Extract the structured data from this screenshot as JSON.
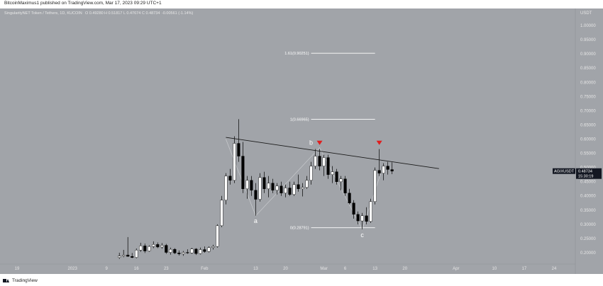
{
  "header": {
    "author": "BitcoinMaximus1",
    "published_text": "published on TradingView.com, Mar 17, 2023 09:29 UTC+1"
  },
  "ohlc_header": {
    "symbol": "SingularityNET Token / Tethers, 1D, KUCOIN",
    "open": "O 0.49280",
    "high": "H 0.51817",
    "low": "L 0.47674",
    "close": "C 0.48734",
    "change": "-0.00561 (-1.14%)"
  },
  "colors": {
    "background": "#a1a4a9",
    "up_candle": "#ffffff",
    "down_candle": "#000000",
    "trendline": "#1a1a1a",
    "wave_line": "#c9cbce",
    "marker": "#e01e1e",
    "price_tag": "#131722"
  },
  "chart_data": {
    "type": "candlestick",
    "currency_label": "USDT",
    "symbol_label": "AGIXUSDT",
    "last_price": "0.48734",
    "countdown": "15:30:19",
    "y_ticks": [
      "0.20000",
      "0.25000",
      "0.30000",
      "0.35000",
      "0.40000",
      "0.45000",
      "0.50000",
      "0.55000",
      "0.60000",
      "0.65000",
      "0.70000",
      "0.75000",
      "0.80000",
      "0.85000",
      "0.90000",
      "0.95000",
      "1.00000"
    ],
    "y_tick_values": [
      0.2,
      0.25,
      0.3,
      0.35,
      0.4,
      0.45,
      0.5,
      0.55,
      0.6,
      0.65,
      0.7,
      0.75,
      0.8,
      0.85,
      0.9,
      0.95,
      1.0
    ],
    "ylim": [
      0.16,
      1.06
    ],
    "x_ticks": [
      {
        "label": "19",
        "date": "2022-12-19"
      },
      {
        "label": "2023",
        "date": "2023-01-01"
      },
      {
        "label": "9",
        "date": "2023-01-09"
      },
      {
        "label": "16",
        "date": "2023-01-16"
      },
      {
        "label": "23",
        "date": "2023-01-23"
      },
      {
        "label": "Feb",
        "date": "2023-02-01"
      },
      {
        "label": "13",
        "date": "2023-02-13"
      },
      {
        "label": "20",
        "date": "2023-02-20"
      },
      {
        "label": "Mar",
        "date": "2023-03-01"
      },
      {
        "label": "6",
        "date": "2023-03-06"
      },
      {
        "label": "13",
        "date": "2023-03-13"
      },
      {
        "label": "20",
        "date": "2023-03-20"
      },
      {
        "label": "Apr",
        "date": "2023-04-01"
      },
      {
        "label": "10",
        "date": "2023-04-10"
      },
      {
        "label": "17",
        "date": "2023-04-17"
      },
      {
        "label": "24",
        "date": "2023-04-24"
      }
    ],
    "xlim": [
      "2022-12-15",
      "2023-04-29"
    ],
    "fib_levels": [
      {
        "label": "1.61(0.90251)",
        "value": 0.90251
      },
      {
        "label": "1(0.66965)",
        "value": 0.66965
      },
      {
        "label": "0(0.28791)",
        "value": 0.28791
      }
    ],
    "fib_range": [
      "2023-02-26",
      "2023-03-13"
    ],
    "trendline": [
      {
        "date": "2023-02-06",
        "value": 0.606
      },
      {
        "date": "2023-03-28",
        "value": 0.496
      }
    ],
    "wave_path": [
      {
        "date": "2023-02-06",
        "value": 0.6
      },
      {
        "date": "2023-02-13",
        "value": 0.33
      },
      {
        "date": "2023-02-28",
        "value": 0.57
      },
      {
        "date": "2023-03-10",
        "value": 0.282
      },
      {
        "date": "2023-03-15",
        "value": 0.51
      }
    ],
    "wave_labels": [
      {
        "label": "a",
        "date": "2023-02-13",
        "value": 0.305
      },
      {
        "label": "b",
        "date": "2023-02-26",
        "value": 0.58
      },
      {
        "label": "c",
        "date": "2023-03-10",
        "value": 0.255
      }
    ],
    "markers": [
      {
        "date": "2023-02-28",
        "value": 0.582
      },
      {
        "date": "2023-03-14",
        "value": 0.582
      }
    ],
    "candles": [
      {
        "date": "2023-01-12",
        "o": 0.183,
        "h": 0.2,
        "l": 0.178,
        "c": 0.188
      },
      {
        "date": "2023-01-13",
        "o": 0.188,
        "h": 0.21,
        "l": 0.184,
        "c": 0.192
      },
      {
        "date": "2023-01-14",
        "o": 0.192,
        "h": 0.255,
        "l": 0.186,
        "c": 0.187
      },
      {
        "date": "2023-01-15",
        "o": 0.187,
        "h": 0.199,
        "l": 0.181,
        "c": 0.183
      },
      {
        "date": "2023-01-16",
        "o": 0.183,
        "h": 0.215,
        "l": 0.18,
        "c": 0.209
      },
      {
        "date": "2023-01-17",
        "o": 0.209,
        "h": 0.235,
        "l": 0.203,
        "c": 0.224
      },
      {
        "date": "2023-01-18",
        "o": 0.224,
        "h": 0.232,
        "l": 0.199,
        "c": 0.206
      },
      {
        "date": "2023-01-19",
        "o": 0.206,
        "h": 0.226,
        "l": 0.203,
        "c": 0.222
      },
      {
        "date": "2023-01-20",
        "o": 0.222,
        "h": 0.24,
        "l": 0.216,
        "c": 0.229
      },
      {
        "date": "2023-01-21",
        "o": 0.229,
        "h": 0.236,
        "l": 0.216,
        "c": 0.22
      },
      {
        "date": "2023-01-22",
        "o": 0.22,
        "h": 0.234,
        "l": 0.214,
        "c": 0.226
      },
      {
        "date": "2023-01-23",
        "o": 0.226,
        "h": 0.231,
        "l": 0.196,
        "c": 0.201
      },
      {
        "date": "2023-01-24",
        "o": 0.201,
        "h": 0.218,
        "l": 0.193,
        "c": 0.212
      },
      {
        "date": "2023-01-25",
        "o": 0.212,
        "h": 0.216,
        "l": 0.195,
        "c": 0.199
      },
      {
        "date": "2023-01-26",
        "o": 0.199,
        "h": 0.208,
        "l": 0.19,
        "c": 0.196
      },
      {
        "date": "2023-01-27",
        "o": 0.196,
        "h": 0.206,
        "l": 0.189,
        "c": 0.201
      },
      {
        "date": "2023-01-28",
        "o": 0.201,
        "h": 0.212,
        "l": 0.196,
        "c": 0.199
      },
      {
        "date": "2023-01-29",
        "o": 0.199,
        "h": 0.217,
        "l": 0.196,
        "c": 0.213
      },
      {
        "date": "2023-01-30",
        "o": 0.213,
        "h": 0.216,
        "l": 0.192,
        "c": 0.197
      },
      {
        "date": "2023-01-31",
        "o": 0.197,
        "h": 0.218,
        "l": 0.194,
        "c": 0.211
      },
      {
        "date": "2023-02-01",
        "o": 0.211,
        "h": 0.222,
        "l": 0.2,
        "c": 0.204
      },
      {
        "date": "2023-02-02",
        "o": 0.204,
        "h": 0.222,
        "l": 0.201,
        "c": 0.218
      },
      {
        "date": "2023-02-03",
        "o": 0.218,
        "h": 0.228,
        "l": 0.211,
        "c": 0.222
      },
      {
        "date": "2023-02-04",
        "o": 0.222,
        "h": 0.3,
        "l": 0.218,
        "c": 0.295
      },
      {
        "date": "2023-02-05",
        "o": 0.295,
        "h": 0.4,
        "l": 0.29,
        "c": 0.385
      },
      {
        "date": "2023-02-06",
        "o": 0.385,
        "h": 0.48,
        "l": 0.37,
        "c": 0.47
      },
      {
        "date": "2023-02-07",
        "o": 0.47,
        "h": 0.495,
        "l": 0.44,
        "c": 0.455
      },
      {
        "date": "2023-02-08",
        "o": 0.455,
        "h": 0.61,
        "l": 0.445,
        "c": 0.585
      },
      {
        "date": "2023-02-09",
        "o": 0.585,
        "h": 0.67,
        "l": 0.52,
        "c": 0.54
      },
      {
        "date": "2023-02-10",
        "o": 0.54,
        "h": 0.59,
        "l": 0.41,
        "c": 0.425
      },
      {
        "date": "2023-02-11",
        "o": 0.425,
        "h": 0.47,
        "l": 0.39,
        "c": 0.455
      },
      {
        "date": "2023-02-12",
        "o": 0.455,
        "h": 0.47,
        "l": 0.4,
        "c": 0.42
      },
      {
        "date": "2023-02-13",
        "o": 0.42,
        "h": 0.445,
        "l": 0.33,
        "c": 0.388
      },
      {
        "date": "2023-02-14",
        "o": 0.388,
        "h": 0.48,
        "l": 0.38,
        "c": 0.465
      },
      {
        "date": "2023-02-15",
        "o": 0.465,
        "h": 0.485,
        "l": 0.41,
        "c": 0.425
      },
      {
        "date": "2023-02-16",
        "o": 0.425,
        "h": 0.47,
        "l": 0.395,
        "c": 0.445
      },
      {
        "date": "2023-02-17",
        "o": 0.445,
        "h": 0.46,
        "l": 0.41,
        "c": 0.42
      },
      {
        "date": "2023-02-18",
        "o": 0.42,
        "h": 0.445,
        "l": 0.405,
        "c": 0.435
      },
      {
        "date": "2023-02-19",
        "o": 0.435,
        "h": 0.45,
        "l": 0.4,
        "c": 0.41
      },
      {
        "date": "2023-02-20",
        "o": 0.41,
        "h": 0.44,
        "l": 0.395,
        "c": 0.428
      },
      {
        "date": "2023-02-21",
        "o": 0.428,
        "h": 0.45,
        "l": 0.4,
        "c": 0.405
      },
      {
        "date": "2023-02-22",
        "o": 0.405,
        "h": 0.45,
        "l": 0.4,
        "c": 0.44
      },
      {
        "date": "2023-02-23",
        "o": 0.44,
        "h": 0.475,
        "l": 0.415,
        "c": 0.425
      },
      {
        "date": "2023-02-24",
        "o": 0.425,
        "h": 0.445,
        "l": 0.398,
        "c": 0.43
      },
      {
        "date": "2023-02-25",
        "o": 0.43,
        "h": 0.47,
        "l": 0.425,
        "c": 0.455
      },
      {
        "date": "2023-02-26",
        "o": 0.455,
        "h": 0.52,
        "l": 0.44,
        "c": 0.505
      },
      {
        "date": "2023-02-27",
        "o": 0.505,
        "h": 0.565,
        "l": 0.495,
        "c": 0.54
      },
      {
        "date": "2023-02-28",
        "o": 0.54,
        "h": 0.565,
        "l": 0.49,
        "c": 0.505
      },
      {
        "date": "2023-03-01",
        "o": 0.505,
        "h": 0.545,
        "l": 0.47,
        "c": 0.535
      },
      {
        "date": "2023-03-02",
        "o": 0.535,
        "h": 0.545,
        "l": 0.46,
        "c": 0.475
      },
      {
        "date": "2023-03-03",
        "o": 0.475,
        "h": 0.505,
        "l": 0.445,
        "c": 0.485
      },
      {
        "date": "2023-03-04",
        "o": 0.485,
        "h": 0.495,
        "l": 0.44,
        "c": 0.45
      },
      {
        "date": "2023-03-05",
        "o": 0.45,
        "h": 0.47,
        "l": 0.42,
        "c": 0.46
      },
      {
        "date": "2023-03-06",
        "o": 0.46,
        "h": 0.47,
        "l": 0.4,
        "c": 0.41
      },
      {
        "date": "2023-03-07",
        "o": 0.41,
        "h": 0.425,
        "l": 0.37,
        "c": 0.375
      },
      {
        "date": "2023-03-08",
        "o": 0.375,
        "h": 0.385,
        "l": 0.32,
        "c": 0.335
      },
      {
        "date": "2023-03-09",
        "o": 0.335,
        "h": 0.345,
        "l": 0.3,
        "c": 0.312
      },
      {
        "date": "2023-03-10",
        "o": 0.312,
        "h": 0.34,
        "l": 0.282,
        "c": 0.33
      },
      {
        "date": "2023-03-11",
        "o": 0.33,
        "h": 0.36,
        "l": 0.3,
        "c": 0.31
      },
      {
        "date": "2023-03-12",
        "o": 0.31,
        "h": 0.39,
        "l": 0.305,
        "c": 0.38
      },
      {
        "date": "2023-03-13",
        "o": 0.38,
        "h": 0.5,
        "l": 0.37,
        "c": 0.49
      },
      {
        "date": "2023-03-14",
        "o": 0.49,
        "h": 0.565,
        "l": 0.47,
        "c": 0.48
      },
      {
        "date": "2023-03-15",
        "o": 0.48,
        "h": 0.515,
        "l": 0.455,
        "c": 0.505
      },
      {
        "date": "2023-03-16",
        "o": 0.505,
        "h": 0.52,
        "l": 0.475,
        "c": 0.493
      },
      {
        "date": "2023-03-17",
        "o": 0.4928,
        "h": 0.51817,
        "l": 0.47674,
        "c": 0.48734
      }
    ]
  },
  "footer": {
    "brand": "TradingView"
  }
}
